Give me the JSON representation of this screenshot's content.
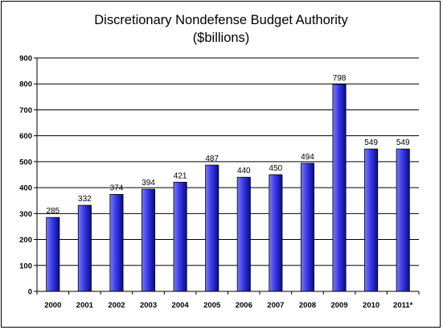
{
  "chart_data": {
    "type": "bar",
    "title": "Discretionary Nondefense Budget Authority",
    "subtitle": "($billions)",
    "categories": [
      "2000",
      "2001",
      "2002",
      "2003",
      "2004",
      "2005",
      "2006",
      "2007",
      "2008",
      "2009",
      "2010",
      "2011*"
    ],
    "values": [
      285,
      332,
      374,
      394,
      421,
      487,
      440,
      450,
      494,
      798,
      549,
      549
    ],
    "data_labels": [
      "285",
      "332",
      "374",
      "394",
      "421",
      "487",
      "440",
      "450",
      "494",
      "798",
      "549",
      "549"
    ],
    "ylim": [
      0,
      900
    ],
    "yticks": [
      0,
      100,
      200,
      300,
      400,
      500,
      600,
      700,
      800,
      900
    ],
    "xlabel": "",
    "ylabel": "",
    "grid": true,
    "legend": "none",
    "colors": {
      "bar_light": "#7b7bf7",
      "bar_mid": "#3a3ae8",
      "bar_dark": "#0a0a8c",
      "grid": "#000000",
      "background": "#ffffff"
    }
  }
}
